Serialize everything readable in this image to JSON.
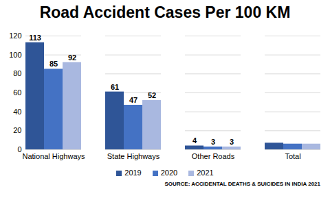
{
  "chart_data": {
    "type": "bar",
    "title": "Road Accident Cases Per 100 KM",
    "caption": "SOURCE: ACCIDENTAL DEATHS & SUICIDES IN INDIA 2021",
    "categories": [
      "National Highways",
      "State Highways",
      "Other Roads",
      "Total"
    ],
    "series": [
      {
        "name": "2019",
        "color": "#2f5597",
        "values": [
          113,
          61,
          4,
          7
        ],
        "value_labels": [
          "113",
          "61",
          "4",
          null
        ]
      },
      {
        "name": "2020",
        "color": "#4472c4",
        "values": [
          85,
          47,
          3,
          6
        ],
        "value_labels": [
          "85",
          "47",
          "3",
          null
        ]
      },
      {
        "name": "2021",
        "color": "#a9b8e0",
        "values": [
          92,
          52,
          3,
          6
        ],
        "value_labels": [
          "92",
          "52",
          "3",
          null
        ]
      }
    ],
    "ylim": [
      0,
      120
    ],
    "yticks": [
      0,
      20,
      40,
      60,
      80,
      100,
      120
    ],
    "grid": true,
    "legend": "bottom",
    "data_labels": true
  }
}
